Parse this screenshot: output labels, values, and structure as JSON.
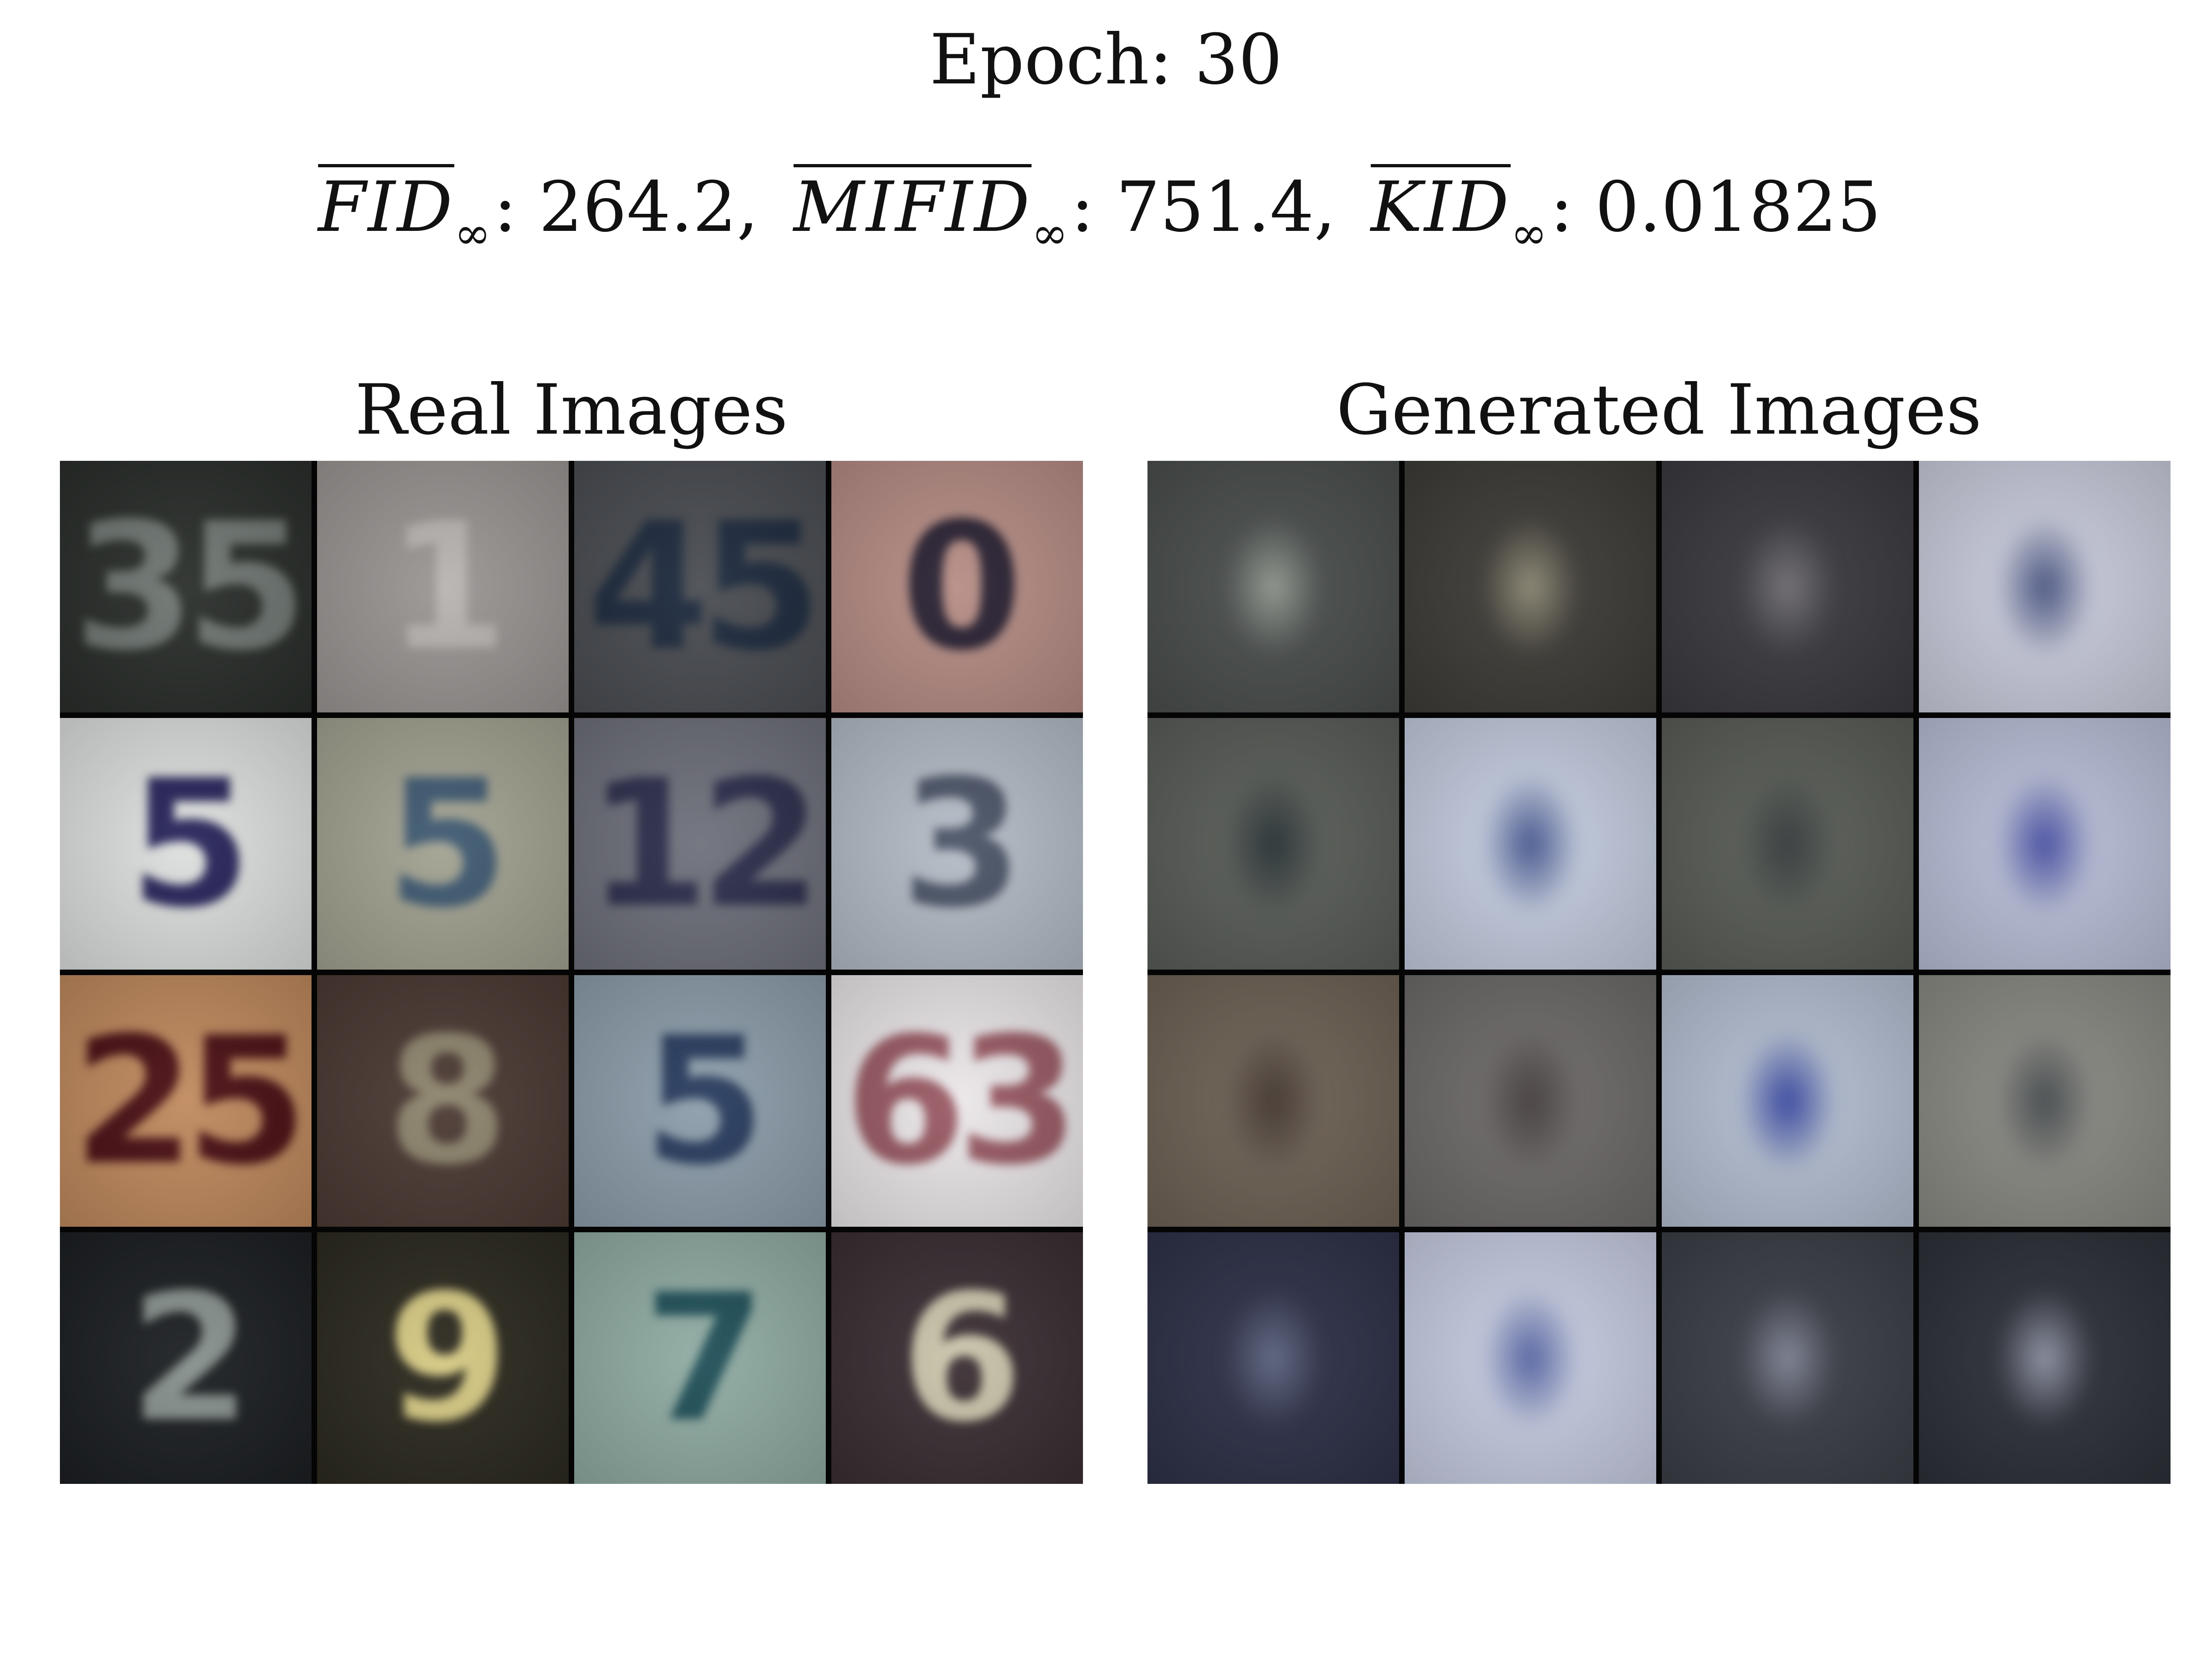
{
  "header": {
    "epoch_label": "Epoch: 30"
  },
  "metrics": [
    {
      "name": "FID",
      "subscript": "∞",
      "value": "264.2",
      "separator": ","
    },
    {
      "name": "MIFID",
      "subscript": "∞",
      "value": "751.4",
      "separator": ","
    },
    {
      "name": "KID",
      "subscript": "∞",
      "value": "0.01825",
      "separator": ""
    }
  ],
  "panels": {
    "real": {
      "title": "Real Images",
      "tiles": [
        {
          "digits": "35",
          "bg": "#2a2e2b",
          "fg": "#6f7672"
        },
        {
          "digits": "1",
          "bg": "#9a9694",
          "fg": "#b9b4b1"
        },
        {
          "digits": "45",
          "bg": "#4a4d52",
          "fg": "#1d2a3e"
        },
        {
          "digits": "0",
          "bg": "#b68d85",
          "fg": "#2a2233"
        },
        {
          "digits": "5",
          "bg": "#dde0de",
          "fg": "#27245a"
        },
        {
          "digits": "5",
          "bg": "#a3a392",
          "fg": "#3f5a72"
        },
        {
          "digits": "12",
          "bg": "#6e707b",
          "fg": "#2d2f4d"
        },
        {
          "digits": "3",
          "bg": "#b4bcc6",
          "fg": "#4b5467"
        },
        {
          "digits": "25",
          "bg": "#c08a5e",
          "fg": "#4a0f14"
        },
        {
          "digits": "8",
          "bg": "#4c3a34",
          "fg": "#8c846c"
        },
        {
          "digits": "5",
          "bg": "#8d9eab",
          "fg": "#283c5e"
        },
        {
          "digits": "63",
          "bg": "#ece8ea",
          "fg": "#9a5a64"
        },
        {
          "digits": "2",
          "bg": "#1c1f22",
          "fg": "#86908c"
        },
        {
          "digits": "9",
          "bg": "#2c2a1f",
          "fg": "#d6c983"
        },
        {
          "digits": "7",
          "bg": "#90aca3",
          "fg": "#1f4f58"
        },
        {
          "digits": "6",
          "bg": "#3b2f34",
          "fg": "#c9c4aa"
        }
      ]
    },
    "generated": {
      "title": "Generated Images",
      "tiles": [
        {
          "digits": "",
          "bg": "#4a4e4d",
          "fg": "#8f948c"
        },
        {
          "digits": "",
          "bg": "#3e3c37",
          "fg": "#8a8672"
        },
        {
          "digits": "",
          "bg": "#3a3a3f",
          "fg": "#6e6b70"
        },
        {
          "digits": "",
          "bg": "#c9ccdc",
          "fg": "#3f4a78"
        },
        {
          "digits": "",
          "bg": "#595d58",
          "fg": "#202a2e"
        },
        {
          "digits": "",
          "bg": "#c4cde0",
          "fg": "#3b4c86"
        },
        {
          "digits": "",
          "bg": "#595d57",
          "fg": "#2f3436"
        },
        {
          "digits": "",
          "bg": "#b9bfd8",
          "fg": "#3d449a"
        },
        {
          "digits": "",
          "bg": "#6e6255",
          "fg": "#3c302a"
        },
        {
          "digits": "",
          "bg": "#6e6a6a",
          "fg": "#3e3737"
        },
        {
          "digits": "",
          "bg": "#b5bfd2",
          "fg": "#2b3c98"
        },
        {
          "digits": "",
          "bg": "#8a8a84",
          "fg": "#3e4347"
        },
        {
          "digits": "",
          "bg": "#2e3148",
          "fg": "#5c6480"
        },
        {
          "digits": "",
          "bg": "#c7cde2",
          "fg": "#4b5a9a"
        },
        {
          "digits": "",
          "bg": "#3b3e46",
          "fg": "#7c8092"
        },
        {
          "digits": "",
          "bg": "#2d3038",
          "fg": "#8a8ea0"
        }
      ]
    }
  }
}
